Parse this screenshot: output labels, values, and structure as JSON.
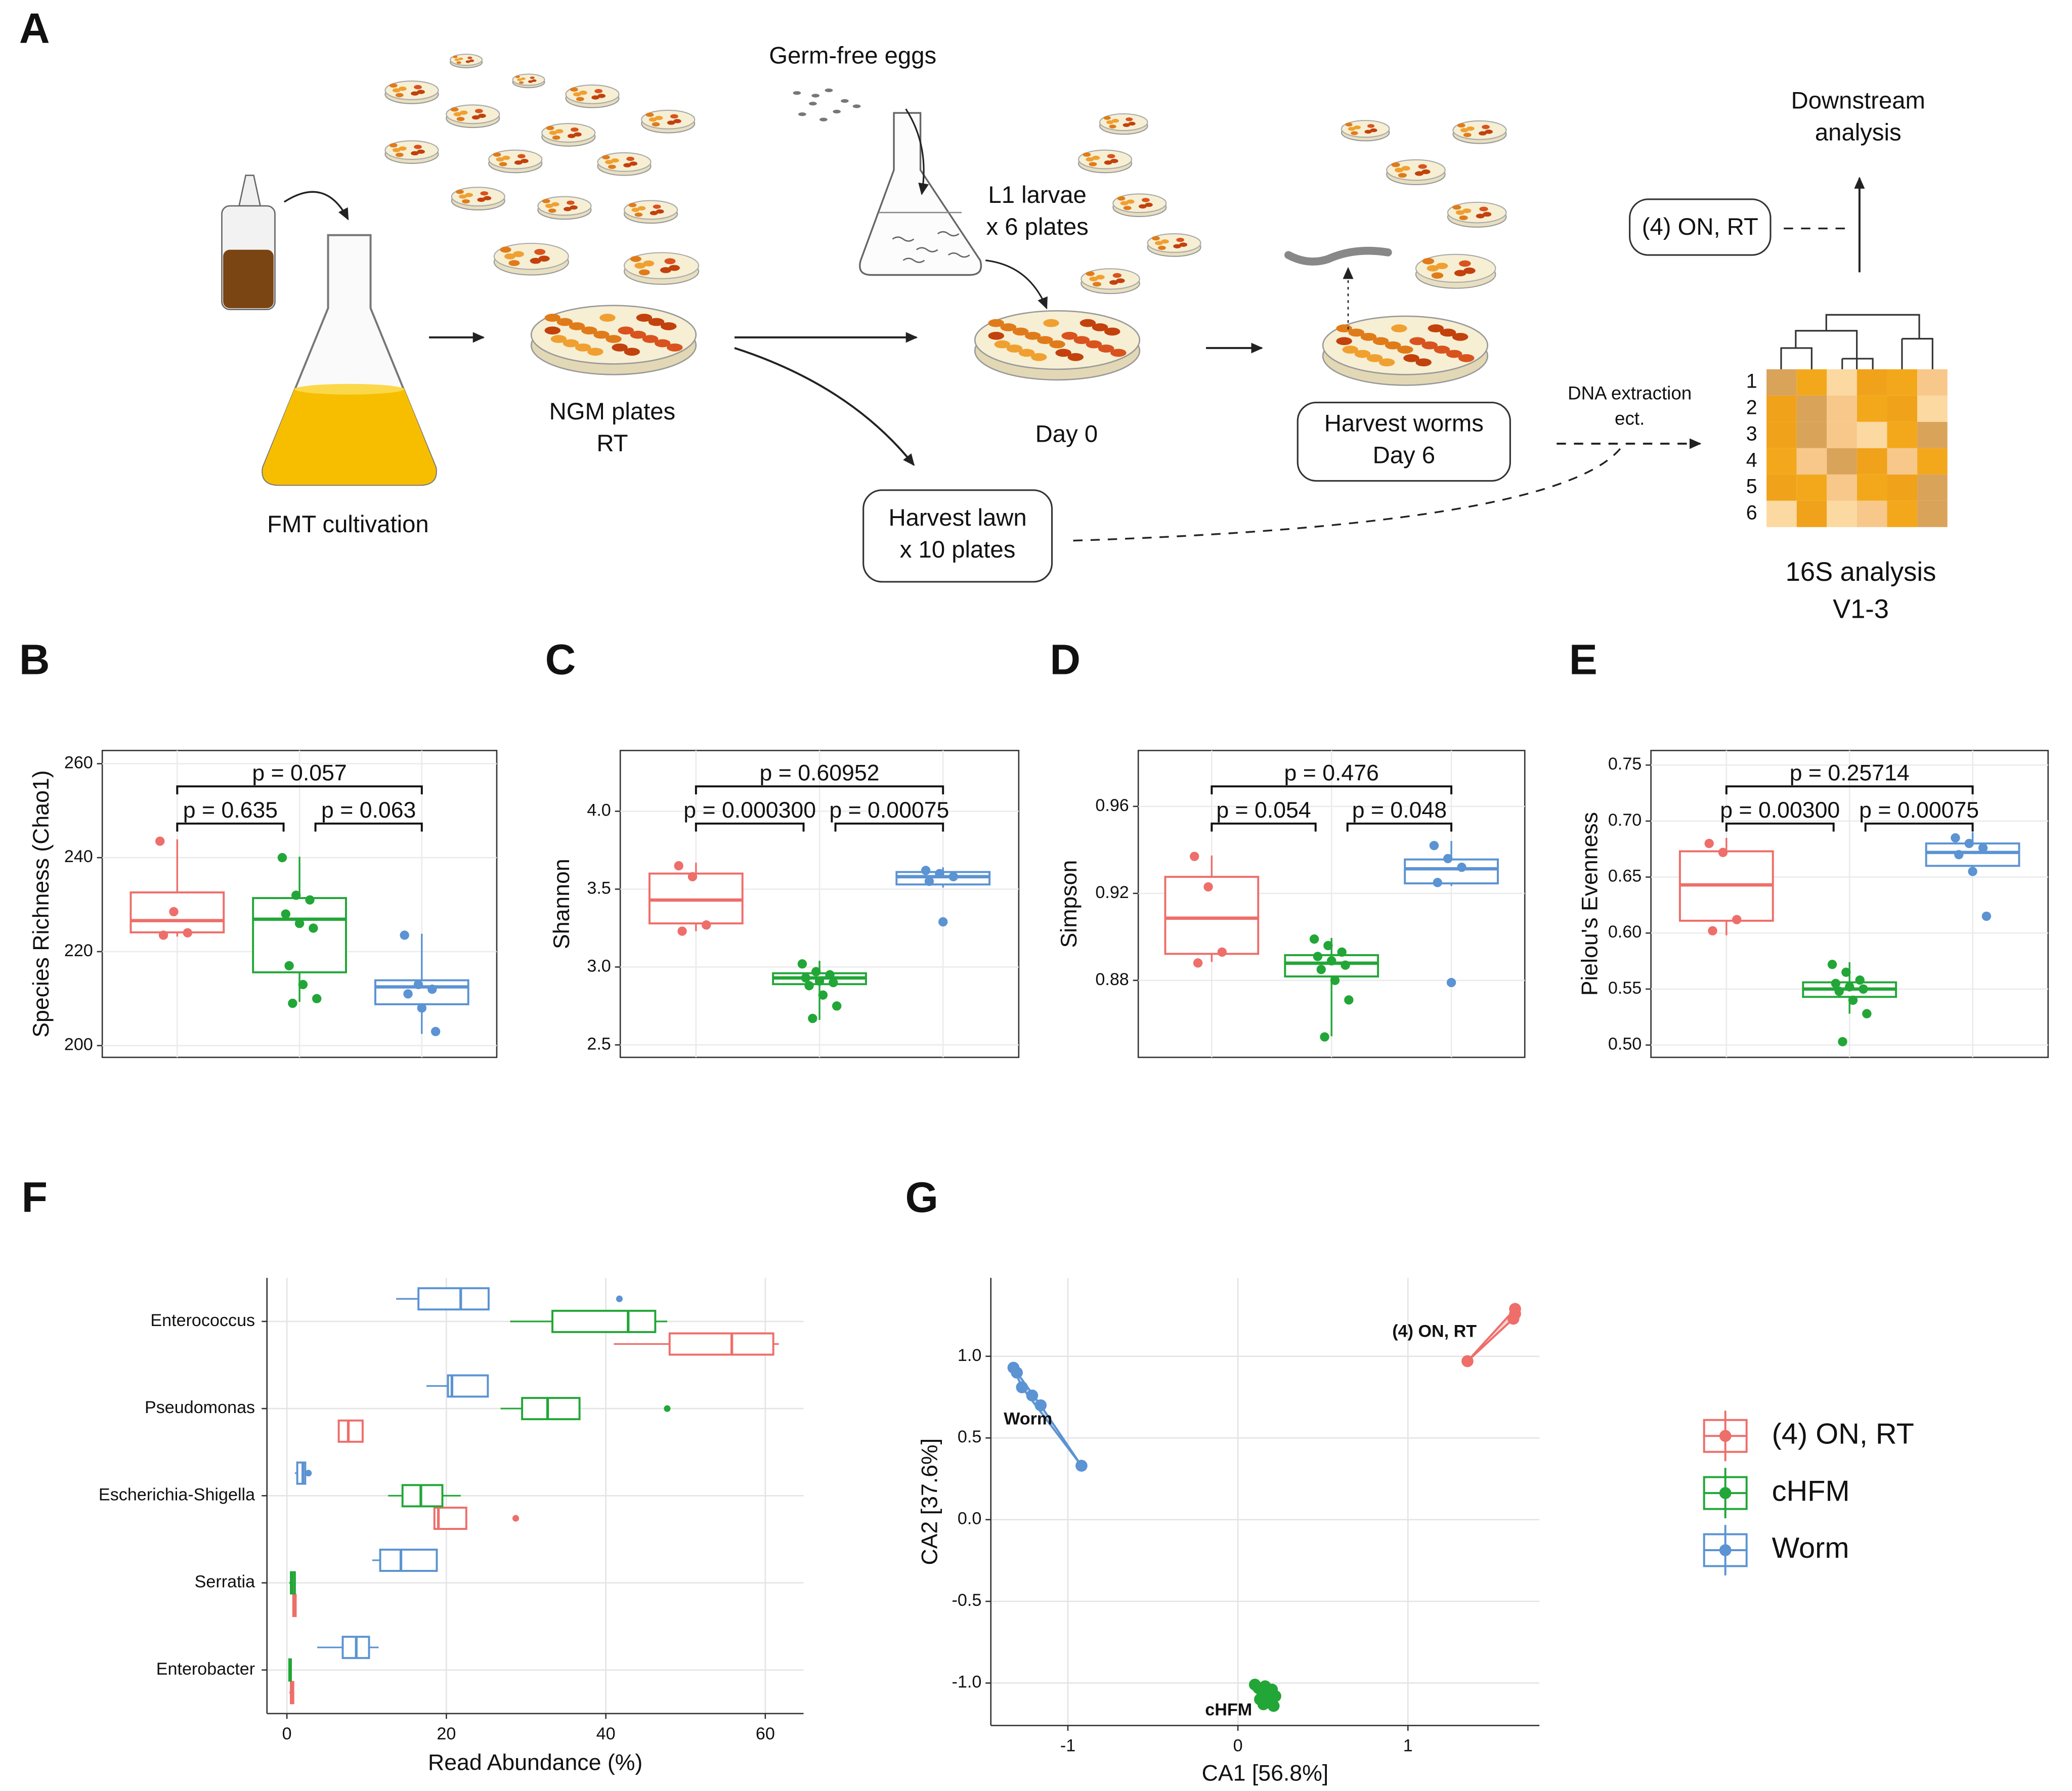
{
  "panel_labels": [
    "A",
    "B",
    "C",
    "D",
    "E",
    "F",
    "G"
  ],
  "diagram": {
    "fmt": "FMT cultivation",
    "ngm": [
      "NGM plates",
      "RT"
    ],
    "eggs": "Germ-free eggs",
    "larvae": [
      "L1 larvae",
      "x 6 plates"
    ],
    "day0": "Day 0",
    "harvest_worms": [
      "Harvest worms",
      "Day 6"
    ],
    "harvest_lawn": [
      "Harvest lawn",
      "x 10 plates"
    ],
    "dna": [
      "DNA extraction",
      "ect."
    ],
    "downstream": [
      "Downstream",
      "analysis"
    ],
    "on_rt": "(4) ON, RT",
    "analysis": [
      "16S analysis",
      "V1-3"
    ],
    "heatmap_rows": [
      1,
      2,
      3,
      4,
      5,
      6
    ]
  },
  "chart_data": [
    {
      "type": "box",
      "ylabel": "Species Richness (Chao1)",
      "ylim": [
        197.5,
        262.8
      ],
      "yticks": [
        200,
        220,
        240,
        260
      ],
      "colors": [
        "#ee6e6a",
        "#22a637",
        "#5b93d3"
      ],
      "boxes": [
        {
          "min": 223.2,
          "q1": 224.1,
          "median": 226.6,
          "q3": 232.6,
          "max": 243.9,
          "points": [
            243.5,
            228.5,
            224,
            223.5
          ]
        },
        {
          "min": 209.3,
          "q1": 215.6,
          "median": 226.9,
          "q3": 231.4,
          "max": 240.2,
          "points": [
            240,
            232,
            231,
            228,
            226,
            225,
            217,
            213,
            210,
            209
          ]
        },
        {
          "min": 202.5,
          "q1": 208.8,
          "median": 212.5,
          "q3": 213.9,
          "max": 223.8,
          "points": [
            223.5,
            213,
            212,
            211,
            208,
            203
          ]
        }
      ],
      "comparisons": [
        "p = 0.057",
        "p = 0.635",
        "p = 0.063"
      ]
    },
    {
      "type": "box",
      "ylabel": "Shannon",
      "ylim": [
        2.42,
        4.39
      ],
      "yticks": [
        2.5,
        {
          "value": 3,
          "label": "3.0"
        },
        3.5,
        {
          "value": 4,
          "label": "4.0"
        }
      ],
      "colors": [
        "#ee6e6a",
        "#22a637",
        "#5b93d3"
      ],
      "boxes": [
        {
          "min": 3.23,
          "q1": 3.28,
          "median": 3.43,
          "q3": 3.6,
          "max": 3.67,
          "points": [
            3.65,
            3.58,
            3.27,
            3.23
          ]
        },
        {
          "min": 2.66,
          "q1": 2.89,
          "median": 2.93,
          "q3": 2.96,
          "max": 3.04,
          "points": [
            3.02,
            2.97,
            2.95,
            2.93,
            2.91,
            2.9,
            2.88,
            2.82,
            2.75,
            2.67
          ]
        },
        {
          "min": 3.51,
          "q1": 3.53,
          "median": 3.58,
          "q3": 3.61,
          "max": 3.64,
          "points": [
            3.62,
            3.6,
            3.58,
            3.55,
            3.29
          ]
        }
      ],
      "comparisons": [
        "p = 0.60952",
        "p = 0.000300",
        "p = 0.00075"
      ]
    },
    {
      "type": "box",
      "ylabel": "Simpson",
      "ylim": [
        0.8446,
        0.9857
      ],
      "yticks": [
        0.88,
        0.92,
        0.96
      ],
      "colors": [
        "#ee6e6a",
        "#22a637",
        "#5b93d3"
      ],
      "boxes": [
        {
          "min": 0.8885,
          "q1": 0.8922,
          "median": 0.9086,
          "q3": 0.9276,
          "max": 0.9374,
          "points": [
            0.937,
            0.923,
            0.893,
            0.888
          ]
        },
        {
          "min": 0.8543,
          "q1": 0.8818,
          "median": 0.8879,
          "q3": 0.8916,
          "max": 0.8995,
          "points": [
            0.899,
            0.896,
            0.893,
            0.891,
            0.889,
            0.887,
            0.885,
            0.88,
            0.871,
            0.854
          ]
        },
        {
          "min": 0.9234,
          "q1": 0.9246,
          "median": 0.9313,
          "q3": 0.9356,
          "max": 0.9441,
          "points": [
            0.942,
            0.936,
            0.932,
            0.925,
            0.879
          ]
        }
      ],
      "comparisons": [
        "p = 0.476",
        "p = 0.054",
        "p = 0.048"
      ]
    },
    {
      "type": "box",
      "ylabel": "Pielou's Evenness",
      "ylim": [
        0.489,
        0.763
      ],
      "yticks": [
        {
          "value": 0.5,
          "label": "0.50"
        },
        0.55,
        {
          "value": 0.6,
          "label": "0.60"
        },
        0.65,
        {
          "value": 0.7,
          "label": "0.70"
        },
        0.75
      ],
      "colors": [
        "#ee6e6a",
        "#22a637",
        "#5b93d3"
      ],
      "boxes": [
        {
          "min": 0.598,
          "q1": 0.611,
          "median": 0.643,
          "q3": 0.673,
          "max": 0.685,
          "points": [
            0.68,
            0.672,
            0.612,
            0.602
          ]
        },
        {
          "min": 0.528,
          "q1": 0.543,
          "median": 0.55,
          "q3": 0.556,
          "max": 0.574,
          "points": [
            0.572,
            0.565,
            0.558,
            0.555,
            0.552,
            0.55,
            0.548,
            0.54,
            0.528,
            0.503
          ]
        },
        {
          "min": 0.655,
          "q1": 0.66,
          "median": 0.672,
          "q3": 0.68,
          "max": 0.69,
          "points": [
            0.685,
            0.68,
            0.676,
            0.67,
            0.655,
            0.615
          ]
        }
      ],
      "comparisons": [
        "p = 0.25714",
        "p = 0.00300",
        "p = 0.00075"
      ]
    },
    {
      "type": "hbox",
      "xlabel": "Read Abundance (%)",
      "xlim": [
        -2.5,
        64.8
      ],
      "xticks": [
        0,
        20,
        40,
        60
      ],
      "categories": [
        "Enterococcus",
        "Pseudomonas",
        "Escherichia-Shigella",
        "Serratia",
        "Enterobacter"
      ],
      "series": [
        {
          "color": "#ee6e6a",
          "boxes": [
            {
              "min": 41,
              "q1": 48,
              "median": 55.8,
              "q3": 61,
              "max": 61.7
            },
            {
              "min": 6.5,
              "q1": 6.5,
              "median": 7.7,
              "q3": 9.5,
              "max": 9.5
            },
            {
              "min": 18.5,
              "q1": 18.5,
              "median": 19,
              "q3": 22.5,
              "max": 22.5,
              "outliers": [
                28.7
              ]
            },
            {
              "min": 0.7,
              "q1": 0.8,
              "median": 1,
              "q3": 1.1,
              "max": 1.2
            },
            {
              "min": 0.3,
              "q1": 0.5,
              "median": 0.7,
              "q3": 0.8,
              "max": 0.9
            }
          ]
        },
        {
          "color": "#22a637",
          "boxes": [
            {
              "min": 28,
              "q1": 33.3,
              "median": 42.8,
              "q3": 46.2,
              "max": 47.7
            },
            {
              "min": 26.8,
              "q1": 29.5,
              "median": 32.7,
              "q3": 36.7,
              "max": 36.7,
              "outliers": [
                47.7
              ]
            },
            {
              "min": 12.7,
              "q1": 14.5,
              "median": 16.8,
              "q3": 19.5,
              "max": 21.8
            },
            {
              "min": 0.3,
              "q1": 0.5,
              "median": 0.7,
              "q3": 1,
              "max": 1
            },
            {
              "min": 0.2,
              "q1": 0.3,
              "median": 0.4,
              "q3": 0.5,
              "max": 0.6
            }
          ]
        },
        {
          "color": "#5b93d3",
          "boxes": [
            {
              "min": 13.7,
              "q1": 16.5,
              "median": 21.8,
              "q3": 25.3,
              "max": 25.3,
              "outliers": [
                41.7
              ]
            },
            {
              "min": 17.5,
              "q1": 20.2,
              "median": 20.7,
              "q3": 25.2,
              "max": 25.2
            },
            {
              "min": 1,
              "q1": 1.3,
              "median": 2,
              "q3": 2.3,
              "max": 2.5,
              "outliers": [
                2.7
              ]
            },
            {
              "min": 10.7,
              "q1": 11.7,
              "median": 14.3,
              "q3": 18.8,
              "max": 18.8
            },
            {
              "min": 3.8,
              "q1": 7,
              "median": 8.7,
              "q3": 10.3,
              "max": 11.5
            }
          ]
        }
      ]
    },
    {
      "type": "scatter",
      "xlabel": "CA1 [56.8%]",
      "ylabel": "CA2 [37.6%]",
      "xlim": [
        -1.453,
        1.773
      ],
      "ylim": [
        -1.26,
        1.48
      ],
      "xticks": [
        -1,
        0,
        1
      ],
      "yticks": [
        {
          "value": -1,
          "label": "-1.0"
        },
        -0.5,
        {
          "value": 0,
          "label": "0.0"
        },
        0.5,
        {
          "value": 1,
          "label": "1.0"
        }
      ],
      "annotations": [
        "(4) ON, RT",
        "cHFM",
        "Worm"
      ],
      "series": [
        {
          "name": "(4) ON, RT",
          "color": "#ee6e6a",
          "x": [
            1.35,
            1.63,
            1.63,
            1.62
          ],
          "y": [
            0.97,
            1.29,
            1.26,
            1.23
          ]
        },
        {
          "name": "cHFM",
          "color": "#22a637",
          "x": [
            0.1,
            0.12,
            0.14,
            0.16,
            0.18,
            0.2,
            0.22,
            0.13,
            0.17,
            0.21,
            0.15,
            0.19
          ],
          "y": [
            -1.01,
            -1.03,
            -1.05,
            -1.02,
            -1.06,
            -1.04,
            -1.08,
            -1.1,
            -1.12,
            -1.14,
            -1.13,
            -1.09
          ]
        },
        {
          "name": "Worm",
          "color": "#5b93d3",
          "x": [
            -1.32,
            -1.3,
            -1.27,
            -1.21,
            -1.16,
            -0.92
          ],
          "y": [
            0.93,
            0.9,
            0.81,
            0.76,
            0.7,
            0.33
          ]
        }
      ],
      "legend": "right"
    }
  ]
}
